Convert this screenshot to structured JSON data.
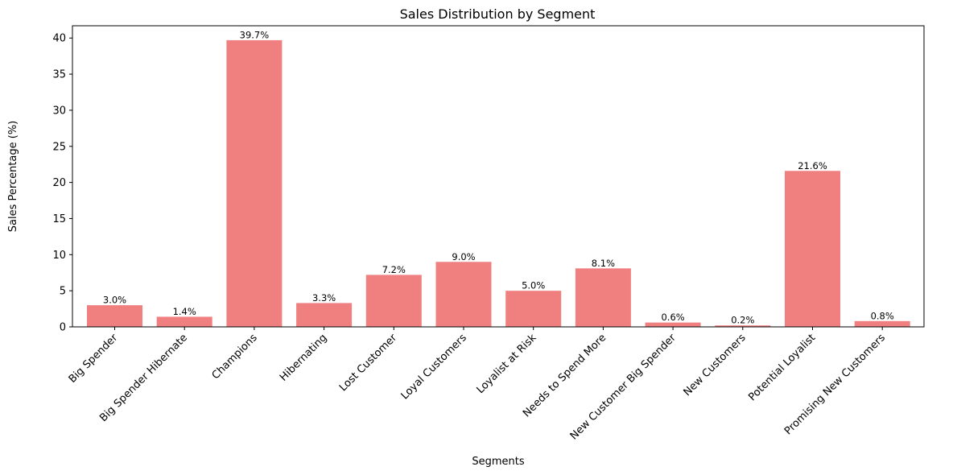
{
  "chart_data": {
    "type": "bar",
    "title": "Sales Distribution by Segment",
    "xlabel": "Segments",
    "ylabel": "Sales Percentage (%)",
    "categories": [
      "Big Spender",
      "Big Spender Hibernate",
      "Champions",
      "Hibernating",
      "Lost Customer",
      "Loyal Customers",
      "Loyalist at Risk",
      "Needs to Spend More",
      "New Customer Big Spender",
      "New Customers",
      "Potential Loyalist",
      "Promising New Customers"
    ],
    "values": [
      3.0,
      1.4,
      39.7,
      3.3,
      7.2,
      9.0,
      5.0,
      8.1,
      0.6,
      0.2,
      21.6,
      0.8
    ],
    "data_labels": [
      "3.0%",
      "1.4%",
      "39.7%",
      "3.3%",
      "7.2%",
      "9.0%",
      "5.0%",
      "8.1%",
      "0.6%",
      "0.2%",
      "21.6%",
      "0.8%"
    ],
    "ylim": [
      0,
      41.7
    ],
    "yticks": [
      0,
      5,
      10,
      15,
      20,
      25,
      30,
      35,
      40
    ],
    "bar_color": "#f08080",
    "grid": false,
    "legend": "none"
  }
}
